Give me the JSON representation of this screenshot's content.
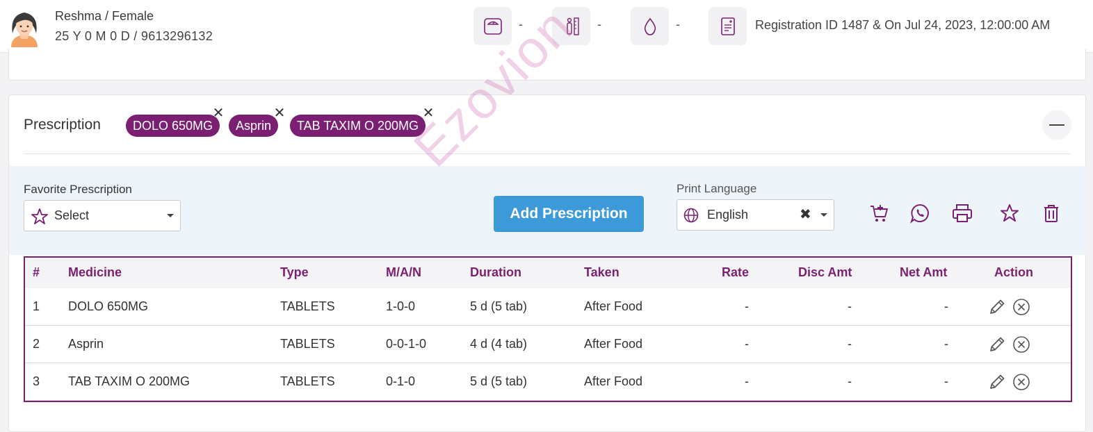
{
  "header": {
    "patient_name": "Reshma / Female",
    "patient_info": "25 Y 0 M 0 D / 9613296132",
    "vitals": [
      {
        "icon": "weight-scale-icon",
        "value": "-"
      },
      {
        "icon": "height-icon",
        "value": "-"
      },
      {
        "icon": "blood-drop-icon",
        "value": "-"
      }
    ],
    "registration": "Registration ID 1487 & On Jul 24, 2023, 12:00:00 AM"
  },
  "prescription": {
    "title": "Prescription",
    "chips": [
      "DOLO 650MG",
      "Asprin",
      "TAB TAXIM O 200MG"
    ],
    "chip_close": "✕",
    "favorite_label": "Favorite Prescription",
    "favorite_select": "Select",
    "add_button": "Add Prescription",
    "print_language_label": "Print Language",
    "print_language_value": "English",
    "clear_glyph": "✖",
    "tools": [
      "add-to-cart-icon",
      "whatsapp-icon",
      "print-icon",
      "star-icon",
      "trash-icon"
    ]
  },
  "table": {
    "columns": [
      "#",
      "Medicine",
      "Type",
      "M/A/N",
      "Duration",
      "Taken",
      "Rate",
      "Disc Amt",
      "Net Amt",
      "Action"
    ],
    "rows": [
      {
        "num": "1",
        "medicine": "DOLO 650MG",
        "type": "TABLETS",
        "man": "1-0-0",
        "duration": "5 d (5 tab)",
        "taken": "After Food",
        "rate": "-",
        "disc": "-",
        "net": "-"
      },
      {
        "num": "2",
        "medicine": "Asprin",
        "type": "TABLETS",
        "man": "0-0-1-0",
        "duration": "4 d (4 tab)",
        "taken": "After Food",
        "rate": "-",
        "disc": "-",
        "net": "-"
      },
      {
        "num": "3",
        "medicine": "TAB TAXIM O 200MG",
        "type": "TABLETS",
        "man": "0-1-0",
        "duration": "5 d (5 tab)",
        "taken": "After Food",
        "rate": "-",
        "disc": "-",
        "net": "-"
      }
    ]
  },
  "watermark": "Ezovion",
  "colors": {
    "accent": "#7b1f72",
    "button": "#3d9ad9",
    "toolbar_bg": "#edf5fb"
  }
}
